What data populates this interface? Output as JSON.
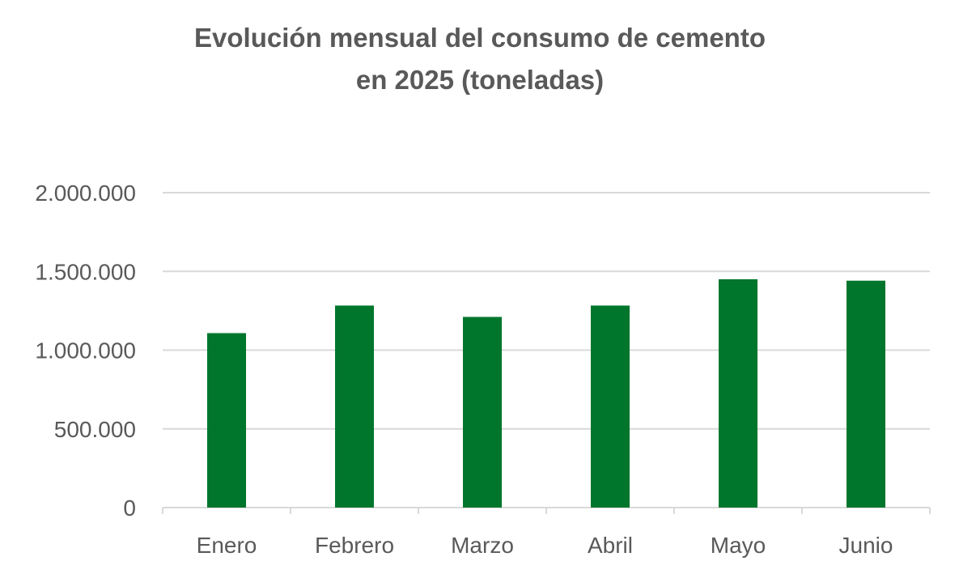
{
  "chart_data": {
    "type": "bar",
    "title": [
      "Evolución mensual del consumo de cemento",
      "en 2025 (toneladas)"
    ],
    "categories": [
      "Enero",
      "Febrero",
      "Marzo",
      "Abril",
      "Mayo",
      "Junio"
    ],
    "values": [
      1108000,
      1283000,
      1211000,
      1283000,
      1450000,
      1441000
    ],
    "ylim": [
      0,
      2000000
    ],
    "yticks": [
      0,
      500000,
      1000000,
      1500000,
      2000000
    ],
    "ytick_labels": [
      "0",
      "500.000",
      "1.000.000",
      "1.500.000",
      "2.000.000"
    ],
    "xlabel": "",
    "ylabel": "",
    "grid": true,
    "legend": "none",
    "colors": {
      "bar": "#00762C",
      "grid": "#D9D9D9",
      "text": "#595959"
    }
  }
}
